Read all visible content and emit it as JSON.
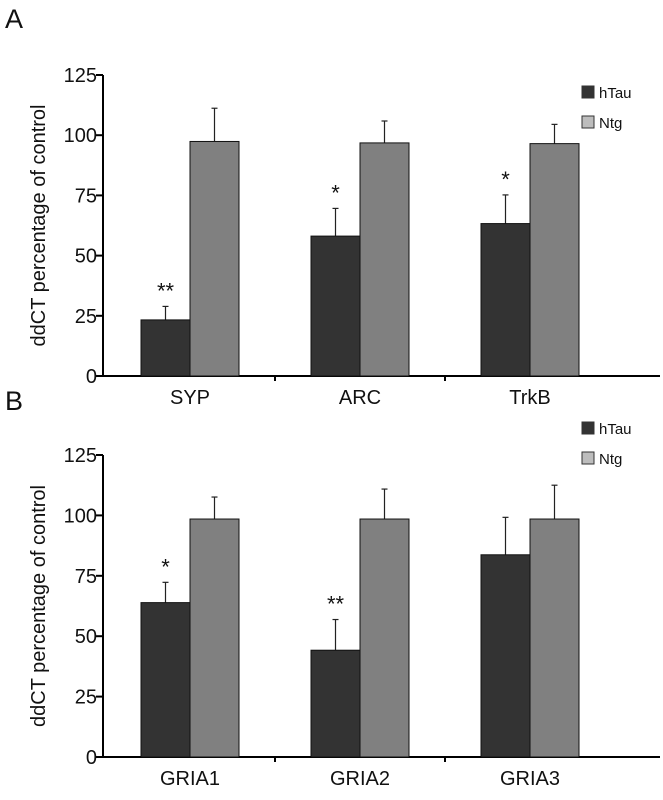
{
  "chart_data": [
    {
      "type": "bar",
      "panel_label": "A",
      "title": "",
      "xlabel": "",
      "ylabel": "ddCT percentage of control",
      "ylim": [
        0,
        125
      ],
      "yticks": [
        "0",
        "25",
        "50",
        "75",
        "100",
        "125"
      ],
      "categories": [
        "SYP",
        "ARC",
        "TrkB"
      ],
      "series": [
        {
          "name": "hTau",
          "color": "#333333",
          "values": [
            23.3,
            58.1,
            63.3
          ],
          "error_upper": [
            28.9,
            69.6,
            75.2
          ]
        },
        {
          "name": "Ntg",
          "color": "#808080",
          "values": [
            97.4,
            96.8,
            96.5
          ],
          "error_upper": [
            111.2,
            105.9,
            104.5
          ]
        }
      ],
      "significance": [
        "**",
        "*",
        "*"
      ],
      "legend": "top-right",
      "grid": false
    },
    {
      "type": "bar",
      "panel_label": "B",
      "title": "",
      "xlabel": "",
      "ylabel": "ddCT percentage of control",
      "ylim": [
        0,
        125
      ],
      "yticks": [
        "0",
        "25",
        "50",
        "75",
        "100",
        "125"
      ],
      "categories": [
        "GRIA1",
        "GRIA2",
        "GRIA3"
      ],
      "series": [
        {
          "name": "hTau",
          "color": "#333333",
          "values": [
            63.9,
            44.2,
            83.7
          ],
          "error_upper": [
            72.3,
            56.9,
            99.2
          ]
        },
        {
          "name": "Ntg",
          "color": "#808080",
          "values": [
            98.5,
            98.5,
            98.5
          ],
          "error_upper": [
            107.6,
            110.9,
            112.5
          ]
        }
      ],
      "significance": [
        "*",
        "**",
        ""
      ],
      "legend": "top-right",
      "grid": false
    }
  ]
}
